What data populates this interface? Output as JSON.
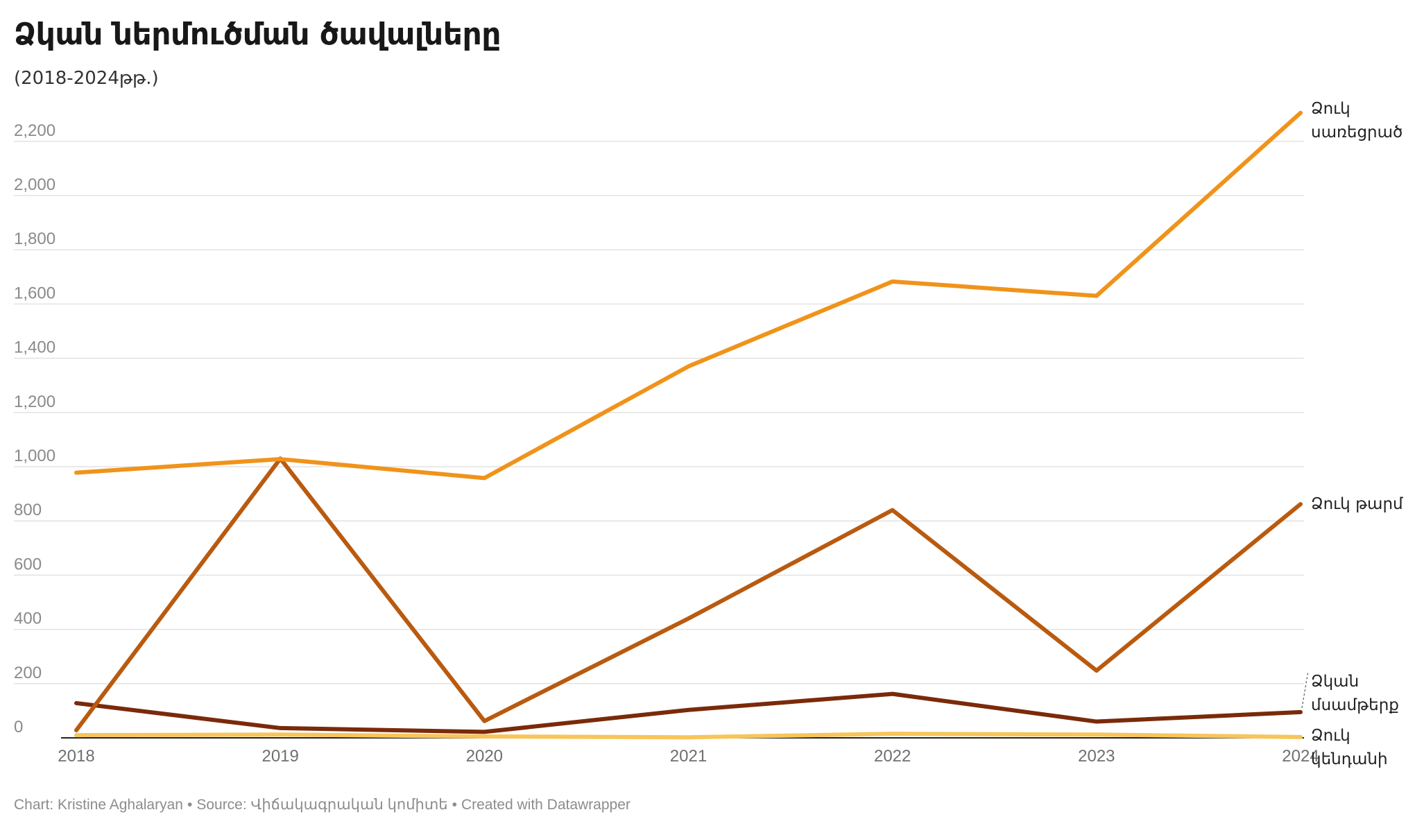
{
  "chart_data": {
    "type": "line",
    "title": "Ձկան ներմուծման ծավալները",
    "subtitle": "(2018-2024թթ.)",
    "x": [
      2018,
      2019,
      2020,
      2021,
      2022,
      2023,
      2024
    ],
    "x_tick_labels": [
      "2018",
      "2019",
      "2020",
      "2021",
      "2022",
      "2023",
      "2024"
    ],
    "ylim": [
      0,
      2300
    ],
    "y_ticks": [
      0,
      200,
      400,
      600,
      800,
      1000,
      1200,
      1400,
      1600,
      1800,
      2000,
      2200
    ],
    "y_tick_labels": [
      "0",
      "200",
      "400",
      "600",
      "800",
      "1,000",
      "1,200",
      "1,400",
      "1,600",
      "1,800",
      "2,000",
      "2,200"
    ],
    "grid": true,
    "legend": "direct labels at right end of lines",
    "series": [
      {
        "name": "Ձուկ սառեցրած",
        "label_lines": [
          "Ձուկ",
          "սառեցրած"
        ],
        "color": "#f0931a",
        "values": [
          978,
          1028,
          958,
          1370,
          1683,
          1630,
          2305
        ]
      },
      {
        "name": "Ձուկ թարմ",
        "label_lines": [
          "Ձուկ թարմ"
        ],
        "color": "#b95a0f",
        "values": [
          28,
          1030,
          62,
          440,
          840,
          248,
          862
        ]
      },
      {
        "name": "Ձկան մսամթերք",
        "label_lines": [
          "Ձկան",
          "մսամթերք"
        ],
        "color": "#7a2a0a",
        "values": [
          128,
          36,
          22,
          103,
          162,
          60,
          95
        ]
      },
      {
        "name": "Ձուկ կենդանի",
        "label_lines": [
          "Ձուկ",
          "կենդանի"
        ],
        "color": "#f7c55a",
        "values": [
          10,
          12,
          5,
          2,
          15,
          12,
          3
        ]
      }
    ]
  },
  "footer": {
    "chart_credit": "Chart: Kristine Aghalaryan",
    "source": "Source: Վիճակագրական կոմիտե",
    "created_with": "Created with Datawrapper",
    "separator": "•"
  }
}
